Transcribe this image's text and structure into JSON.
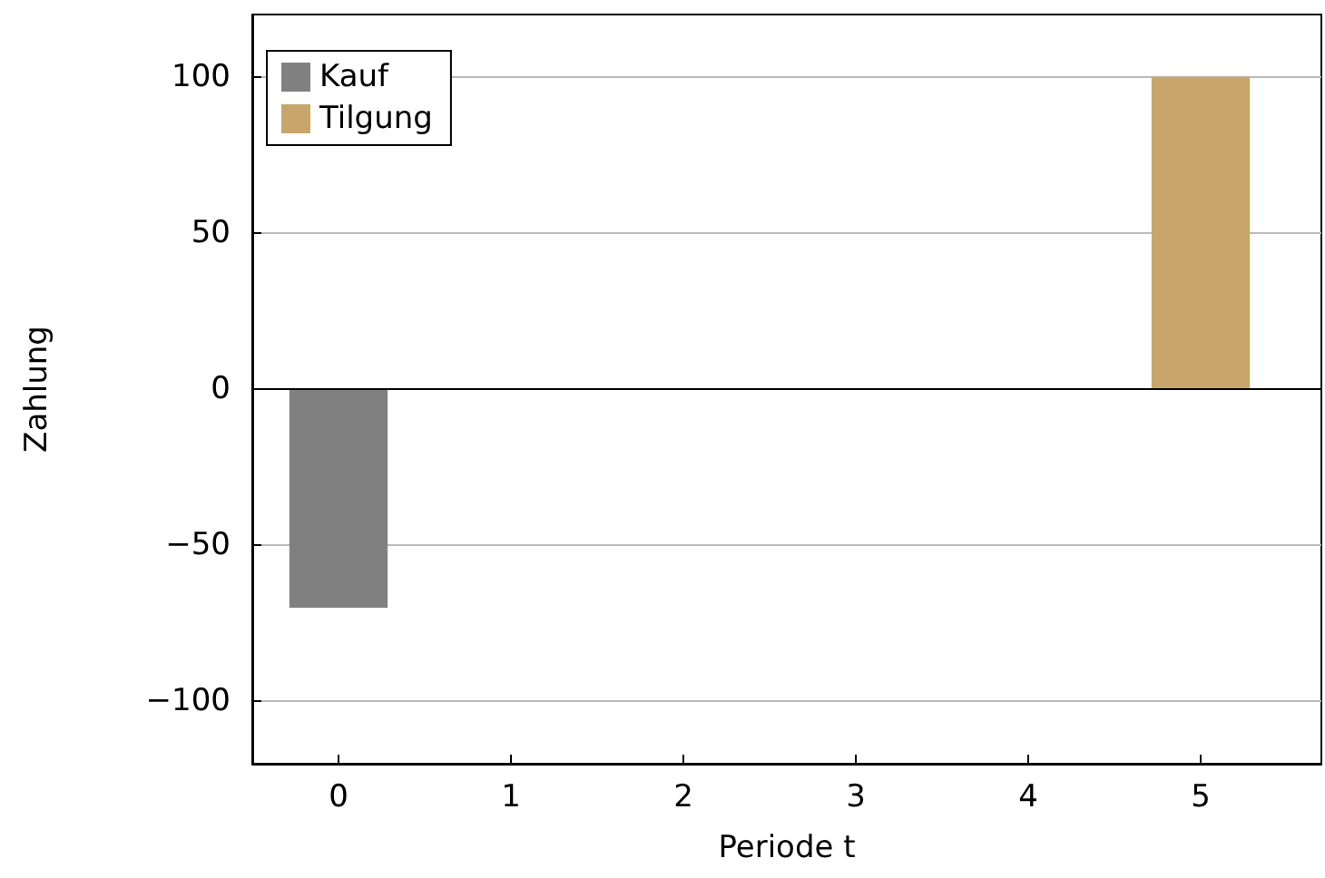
{
  "chart_data": {
    "type": "bar",
    "xlabel": "Periode t",
    "ylabel": "Zahlung",
    "series": [
      {
        "name": "Kauf",
        "color": "#808080",
        "x": [
          0
        ],
        "values": [
          -70
        ]
      },
      {
        "name": "Tilgung",
        "color": "#c8a56a",
        "x": [
          5
        ],
        "values": [
          100
        ]
      }
    ],
    "xlim": [
      -0.5,
      5.7
    ],
    "xticks": [
      0,
      1,
      2,
      3,
      4,
      5
    ],
    "ylim": [
      -120,
      120
    ],
    "yticks": [
      -100,
      -50,
      0,
      50,
      100
    ],
    "ref_lines": [
      {
        "axis": "y",
        "value": 0,
        "color": "#000000"
      }
    ],
    "grid": "y",
    "legend": "top left"
  }
}
